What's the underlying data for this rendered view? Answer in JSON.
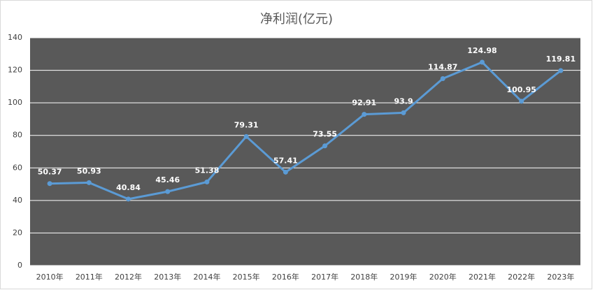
{
  "chart_data": {
    "type": "line",
    "title": "净利润(亿元)",
    "categories": [
      "2010年",
      "2011年",
      "2012年",
      "2013年",
      "2014年",
      "2015年",
      "2016年",
      "2017年",
      "2018年",
      "2019年",
      "2020年",
      "2021年",
      "2022年",
      "2023年"
    ],
    "values": [
      50.37,
      50.93,
      40.84,
      45.46,
      51.38,
      79.31,
      57.41,
      73.55,
      92.91,
      93.9,
      114.87,
      124.98,
      100.95,
      119.81
    ],
    "color": "#5b9bd5",
    "ylim": [
      0,
      140
    ],
    "yticks": [
      0,
      20,
      40,
      60,
      80,
      100,
      120,
      140
    ],
    "grid": true
  }
}
